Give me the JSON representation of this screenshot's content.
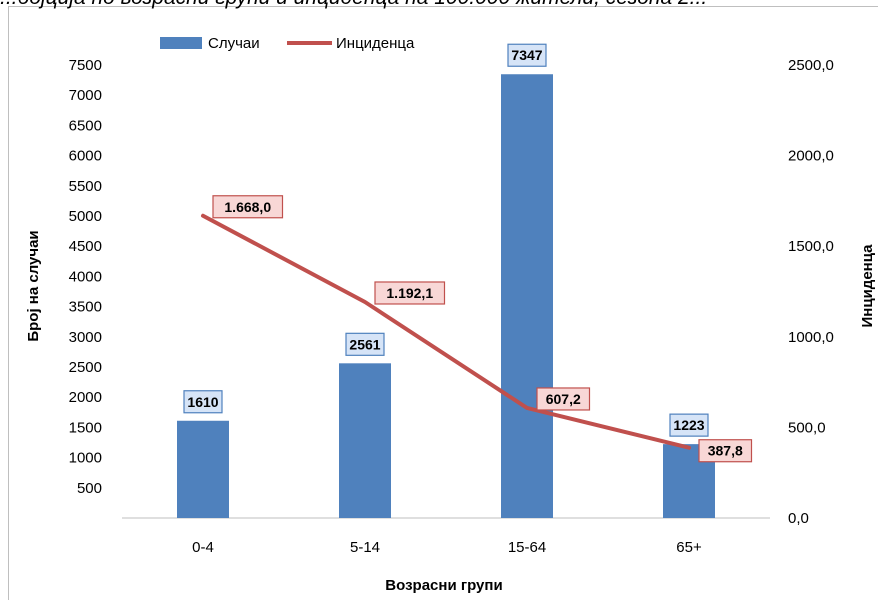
{
  "title": "...бојција по возрасни групи и инциденца на 100.000 жители, сезона 2...",
  "chart_data": {
    "type": "bar",
    "categories": [
      "0-4",
      "5-14",
      "15-64",
      "65+"
    ],
    "series": [
      {
        "name": "Случаи",
        "type": "bar",
        "axis": "left",
        "values": [
          1610,
          2561,
          7347,
          1223
        ],
        "labels": [
          "1610",
          "2561",
          "7347",
          "1223"
        ],
        "color": "#4f81bd"
      },
      {
        "name": "Инциденца",
        "type": "line",
        "axis": "right",
        "values": [
          1668.0,
          1192.1,
          607.2,
          387.8
        ],
        "labels": [
          "1.668,0",
          "1.192,1",
          "607,2",
          "387,8"
        ],
        "color": "#c0504d"
      }
    ],
    "xlabel": "Возрасни групи",
    "ylabel": "Број на случаи",
    "y2label": "Инциденца",
    "ylim": [
      0,
      7500
    ],
    "yticks": [
      "7500",
      "7000",
      "6500",
      "6000",
      "5500",
      "5000",
      "4500",
      "4000",
      "3500",
      "3000",
      "2500",
      "2000",
      "1500",
      "1000",
      "500"
    ],
    "y2lim": [
      0,
      2500
    ],
    "y2ticks": [
      "2500,0",
      "2000,0",
      "1500,0",
      "1000,0",
      "500,0",
      "0,0"
    ],
    "legend_position": "top",
    "grid": false
  }
}
